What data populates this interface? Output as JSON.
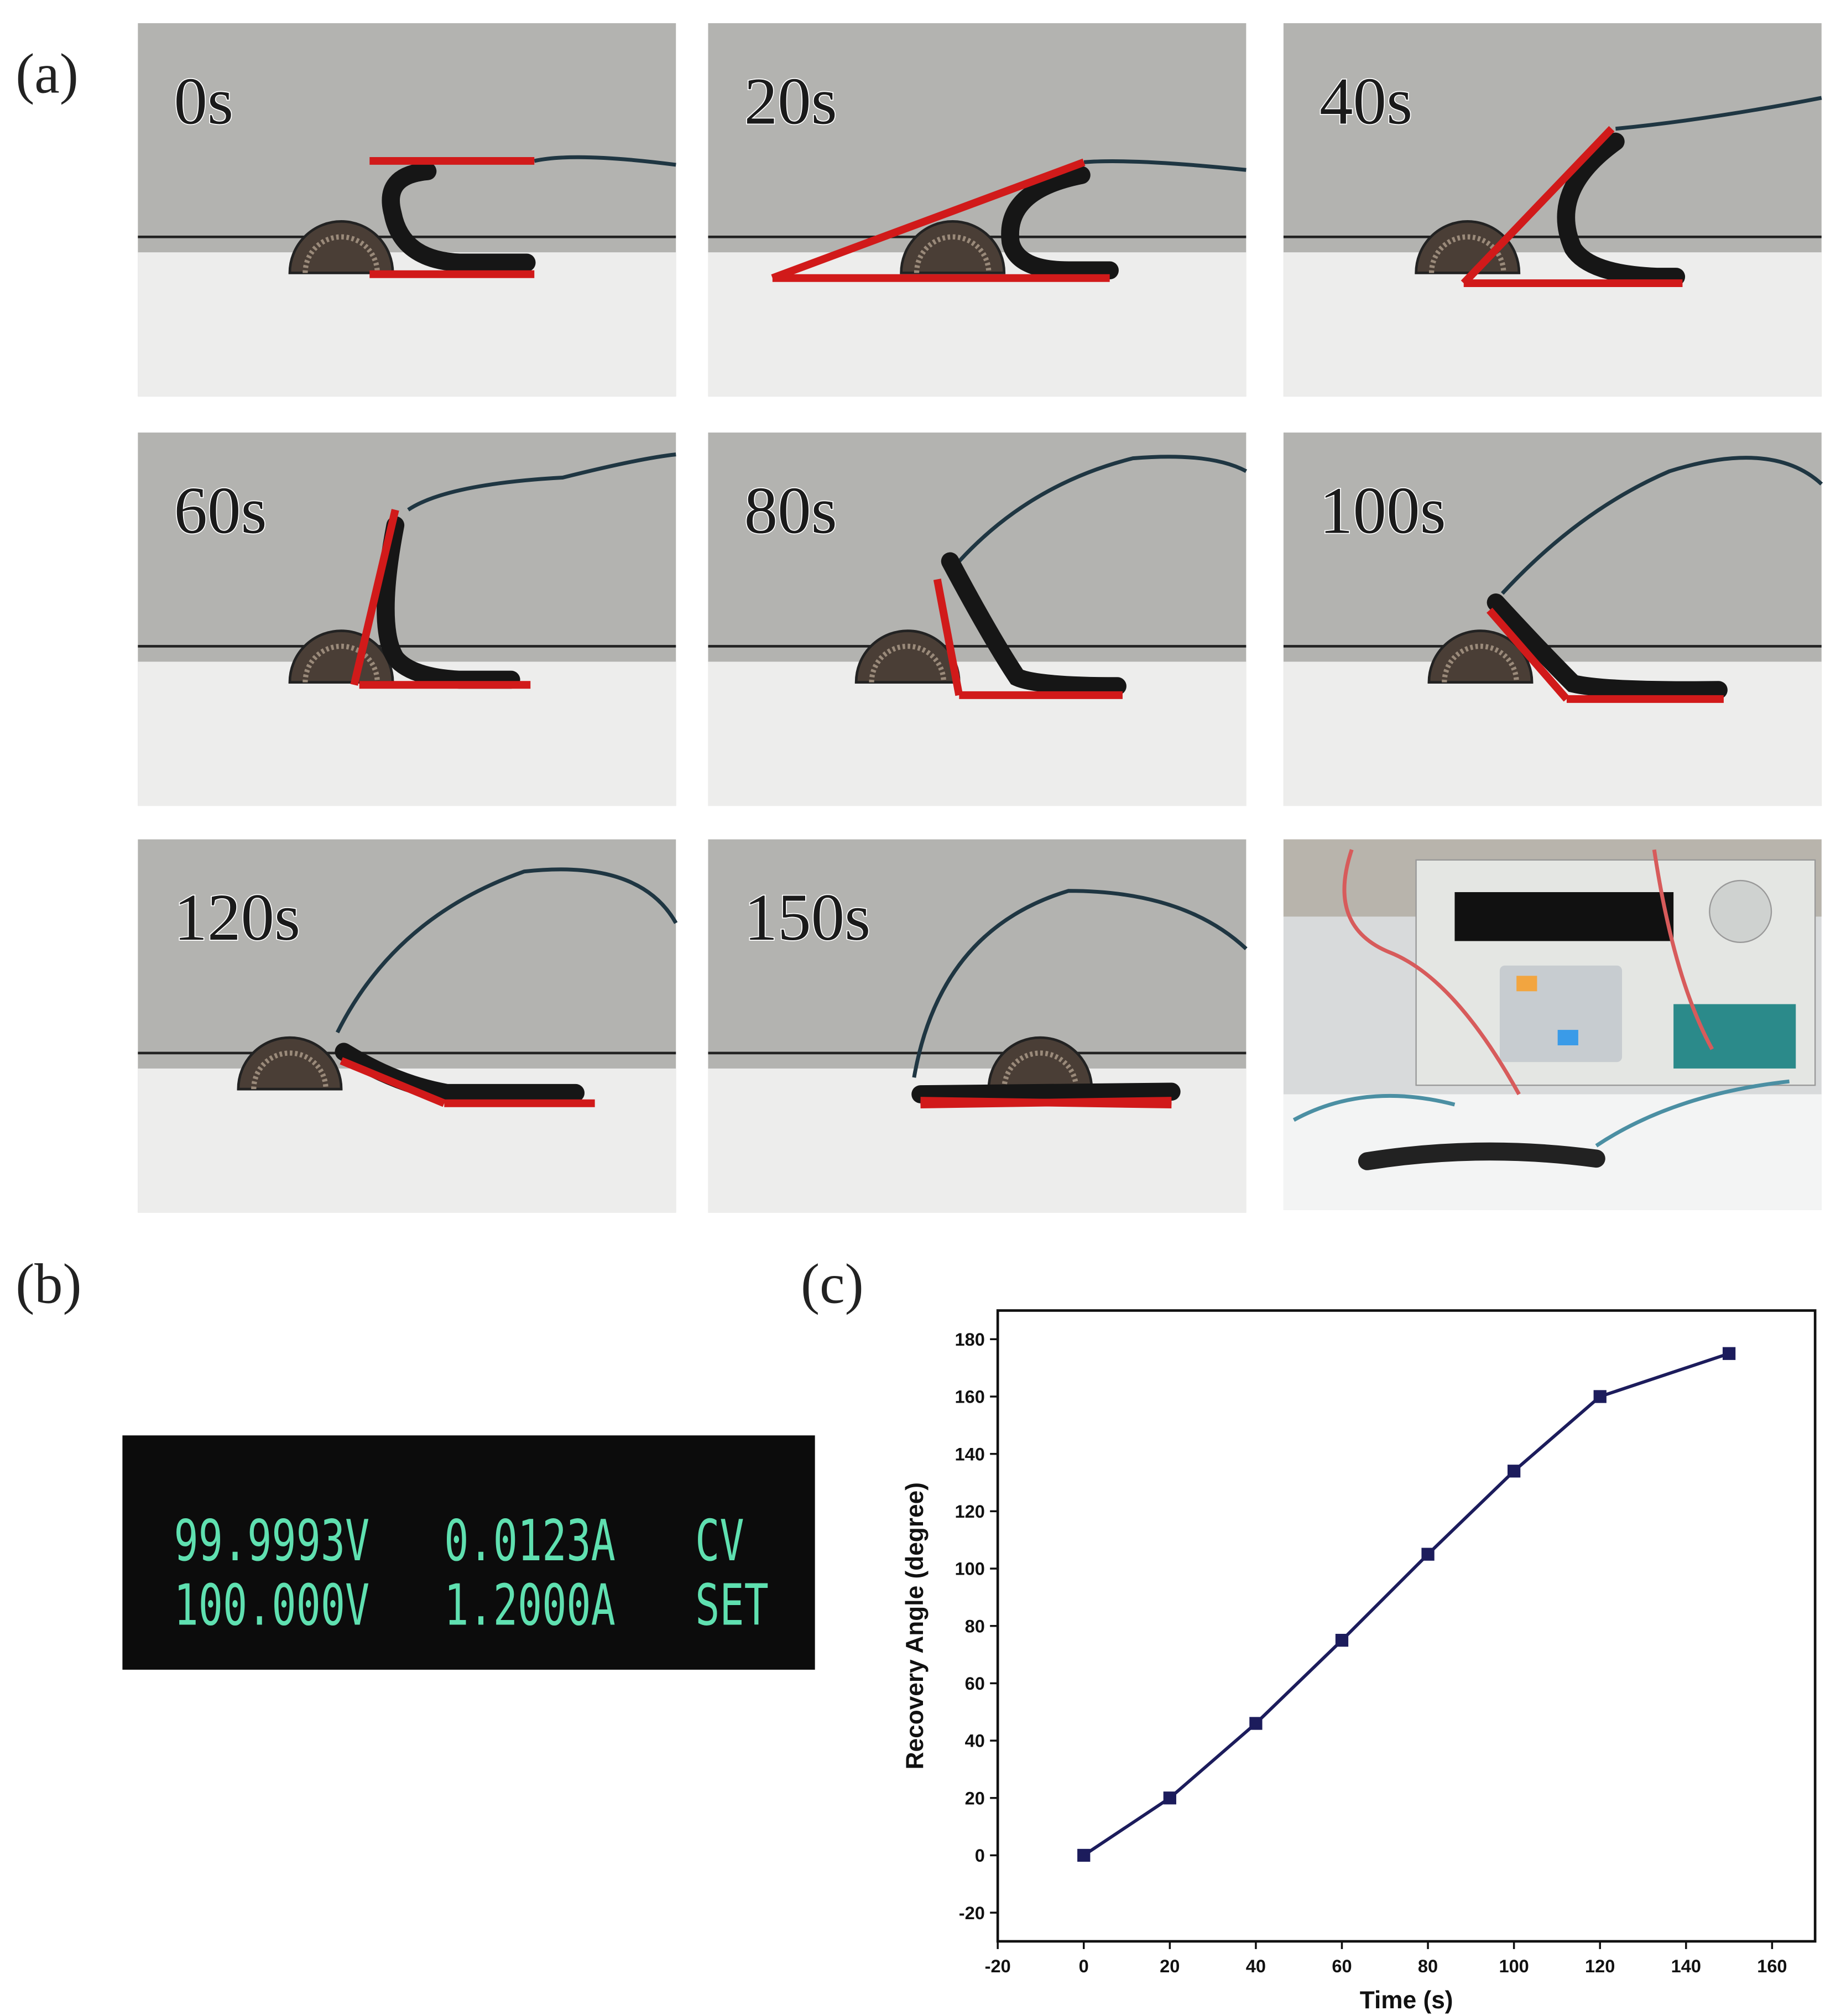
{
  "panel_labels": [
    "(a)",
    "(b)",
    "(c)"
  ],
  "frames": [
    "0s",
    "20s",
    "40s",
    "60s",
    "80s",
    "100s",
    "120s",
    "150s"
  ],
  "display": {
    "rows": [
      [
        "99.9993V",
        "0.0123A",
        "CV"
      ],
      [
        "100.000V",
        "1.2000A",
        "SET"
      ]
    ]
  },
  "chart_data": {
    "type": "line",
    "x_label": "Time (s)",
    "y_label": "Recovery Angle (degree)",
    "x": [
      0,
      20,
      40,
      60,
      80,
      100,
      120,
      150
    ],
    "values": [
      0,
      20,
      46,
      75,
      105,
      134,
      160,
      175
    ],
    "color": "#1c1c5c",
    "xlim": [
      -20,
      170
    ],
    "xticks": [
      -20,
      0,
      20,
      40,
      60,
      80,
      100,
      120,
      140,
      160
    ],
    "ylim": [
      -30,
      190
    ],
    "yticks": [
      -20,
      0,
      20,
      40,
      60,
      80,
      100,
      120,
      140,
      160,
      180
    ]
  }
}
